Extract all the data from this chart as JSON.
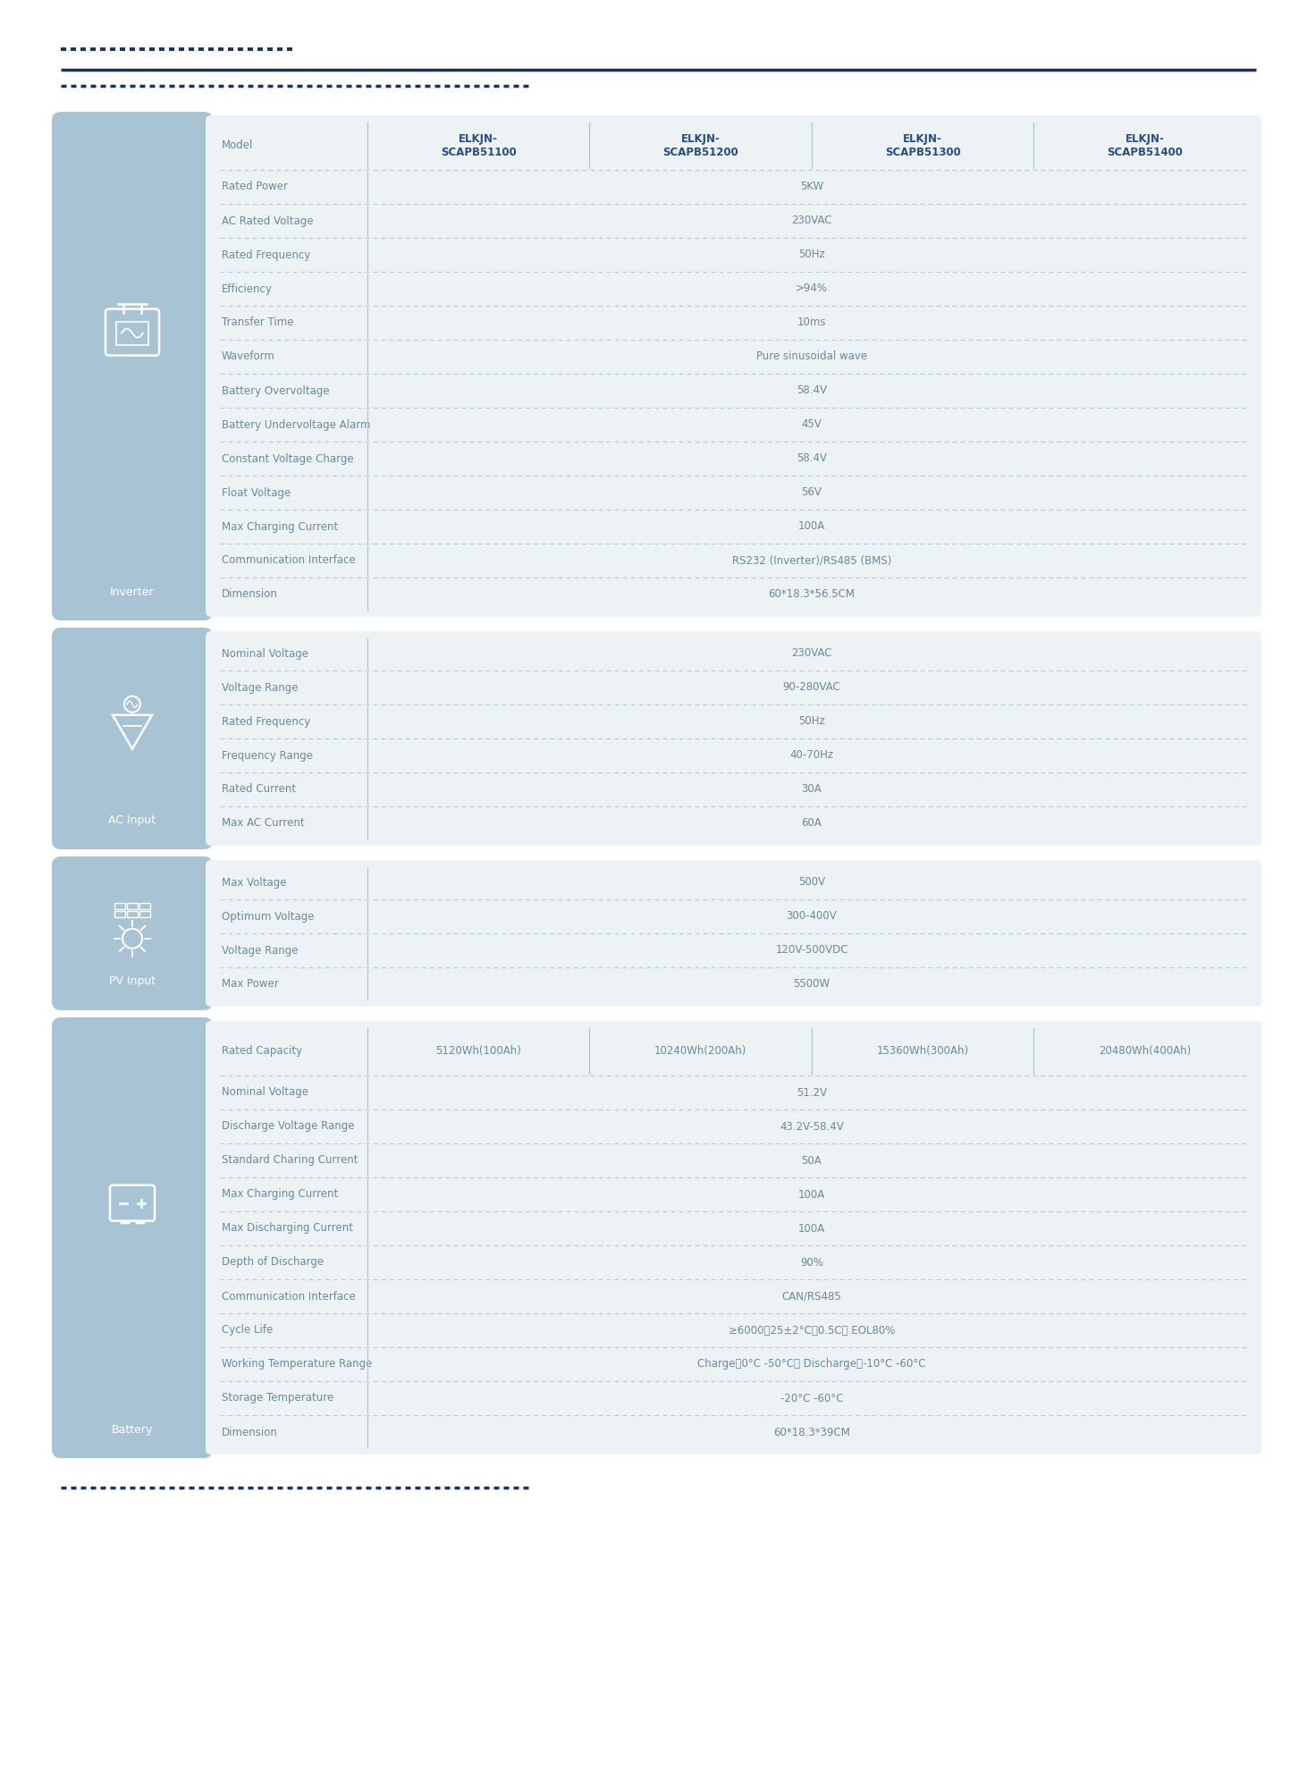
{
  "bg_color": "#ffffff",
  "panel_bg": "#a8c4d4",
  "table_bg": "#edf2f5",
  "text_color": "#6a8a9a",
  "header_text_color": "#2a4a8a",
  "col_sep_color": "#b0c8d4",
  "row_sep_color": "#b8ccd8",
  "dot_color": "#1a3068",
  "line_color": "#1a3068",
  "sections": [
    {
      "label": "Inverter",
      "icon": "inverter",
      "rows": [
        {
          "param": "Model",
          "col_values": [
            "ELKJN-\nSCAPB51100",
            "ELKJN-\nSCAPB51200",
            "ELKJN-\nSCAPB51300",
            "ELKJN-\nSCAPB51400"
          ],
          "span": false
        },
        {
          "param": "Rated Power",
          "value": "5KW",
          "span": true
        },
        {
          "param": "AC Rated Voltage",
          "value": "230VAC",
          "span": true
        },
        {
          "param": "Rated Frequency",
          "value": "50Hz",
          "span": true
        },
        {
          "param": "Efficiency",
          "value": ">94%",
          "span": true
        },
        {
          "param": "Transfer Time",
          "value": "10ms",
          "span": true
        },
        {
          "param": "Waveform",
          "value": "Pure sinusoidal wave",
          "span": true
        },
        {
          "param": "Battery Overvoltage",
          "value": "58.4V",
          "span": true
        },
        {
          "param": "Battery Undervoltage Alarm",
          "value": "45V",
          "span": true
        },
        {
          "param": "Constant Voltage Charge",
          "value": "58.4V",
          "span": true
        },
        {
          "param": "Float Voltage",
          "value": "56V",
          "span": true
        },
        {
          "param": "Max Charging Current",
          "value": "100A",
          "span": true
        },
        {
          "param": "Communication Interface",
          "value": "RS232 (Inverter)/RS485 (BMS)",
          "span": true
        },
        {
          "param": "Dimension",
          "value": "60*18.3*56.5CM",
          "span": true
        }
      ]
    },
    {
      "label": "AC Input",
      "icon": "ac_input",
      "rows": [
        {
          "param": "Nominal Voltage",
          "value": "230VAC",
          "span": true
        },
        {
          "param": "Voltage Range",
          "value": "90-280VAC",
          "span": true
        },
        {
          "param": "Rated Frequency",
          "value": "50Hz",
          "span": true
        },
        {
          "param": "Frequency Range",
          "value": "40-70Hz",
          "span": true
        },
        {
          "param": "Rated Current",
          "value": "30A",
          "span": true
        },
        {
          "param": "Max AC Current",
          "value": "60A",
          "span": true
        }
      ]
    },
    {
      "label": "PV Input",
      "icon": "pv_input",
      "rows": [
        {
          "param": "Max Voltage",
          "value": "500V",
          "span": true
        },
        {
          "param": "Optimum Voltage",
          "value": "300-400V",
          "span": true
        },
        {
          "param": "Voltage Range",
          "value": "120V-500VDC",
          "span": true
        },
        {
          "param": "Max Power",
          "value": "5500W",
          "span": true
        }
      ]
    },
    {
      "label": "Battery",
      "icon": "battery",
      "rows": [
        {
          "param": "Rated Capacity",
          "col_values": [
            "5120Wh(100Ah)",
            "10240Wh(200Ah)",
            "15360Wh(300Ah)",
            "20480Wh(400Ah)"
          ],
          "span": false
        },
        {
          "param": "Nominal Voltage",
          "value": "51.2V",
          "span": true
        },
        {
          "param": "Discharge Voltage Range",
          "value": "43.2V-58.4V",
          "span": true
        },
        {
          "param": "Standard Charing Current",
          "value": "50A",
          "span": true
        },
        {
          "param": "Max Charging Current",
          "value": "100A",
          "span": true
        },
        {
          "param": "Max Discharging Current",
          "value": "100A",
          "span": true
        },
        {
          "param": "Depth of Discharge",
          "value": "90%",
          "span": true
        },
        {
          "param": "Communication Interface",
          "value": "CAN/RS485",
          "span": true
        },
        {
          "param": "Cycle Life",
          "value": "≥6000，25±2°C，0.5C， EOL80%",
          "span": true
        },
        {
          "param": "Working Temperature Range",
          "value": "Charge：0°C -50°C； Discharge：-10°C -60°C",
          "span": true
        },
        {
          "param": "Storage Temperature",
          "value": "-20°C -60°C",
          "span": true
        },
        {
          "param": "Dimension",
          "value": "60*18.3*39CM",
          "span": true
        }
      ]
    }
  ]
}
